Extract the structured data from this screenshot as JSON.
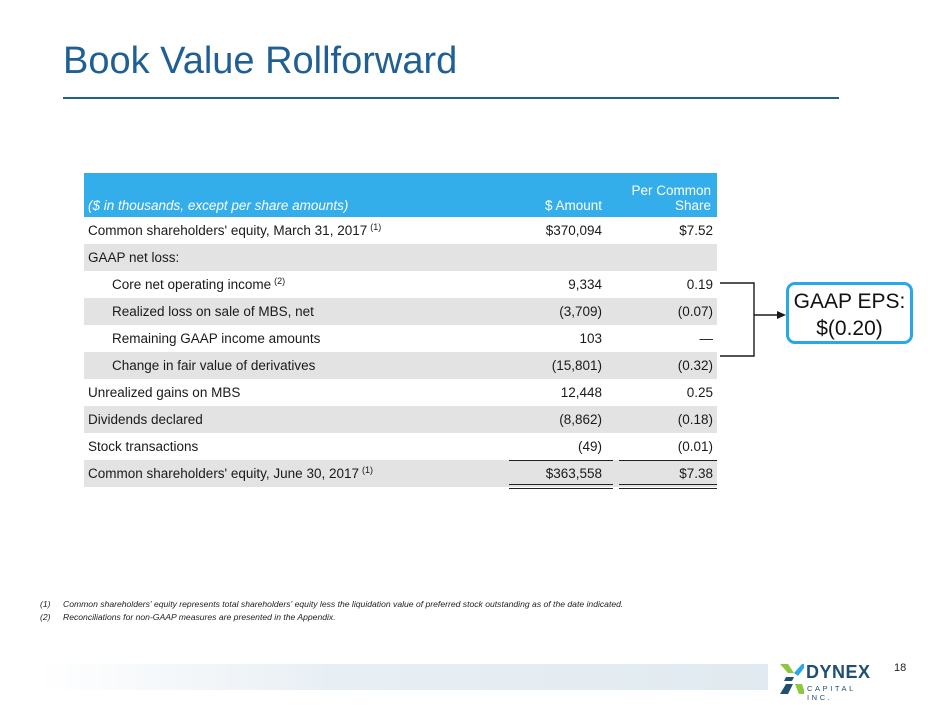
{
  "title": "Book Value Rollforward",
  "table": {
    "header": {
      "label": "($ in thousands, except per share amounts)",
      "amount": "$ Amount",
      "per_share_line1": "Per Common",
      "per_share_line2": "Share"
    },
    "rows": [
      {
        "label": "Common shareholders' equity, March 31, 2017",
        "note": "(1)",
        "amount": "$370,094",
        "per_share": "$7.52"
      },
      {
        "label": "GAAP net loss:",
        "note": "",
        "amount": "",
        "per_share": ""
      },
      {
        "label": "Core net operating income",
        "note": "(2)",
        "amount": "9,334",
        "per_share": "0.19"
      },
      {
        "label": "Realized loss on sale of MBS, net",
        "note": "",
        "amount": "(3,709)",
        "per_share": "(0.07)"
      },
      {
        "label": "Remaining GAAP income amounts",
        "note": "",
        "amount": "103",
        "per_share": "—"
      },
      {
        "label": "Change in fair value of derivatives",
        "note": "",
        "amount": "(15,801)",
        "per_share": "(0.32)"
      },
      {
        "label": "Unrealized gains on MBS",
        "note": "",
        "amount": "12,448",
        "per_share": "0.25"
      },
      {
        "label": "Dividends declared",
        "note": "",
        "amount": "(8,862)",
        "per_share": "(0.18)"
      },
      {
        "label": "Stock transactions",
        "note": "",
        "amount": "(49)",
        "per_share": "(0.01)"
      },
      {
        "label": "Common shareholders' equity, June 30, 2017",
        "note": "(1)",
        "amount": "$363,558",
        "per_share": "$7.38"
      }
    ]
  },
  "eps_box": {
    "line1": "GAAP EPS:",
    "line2": "$(0.20)"
  },
  "footnotes": [
    {
      "mark": "(1)",
      "text": "Common shareholders' equity represents total shareholders' equity less the liquidation value of preferred stock outstanding as of the date indicated."
    },
    {
      "mark": "(2)",
      "text": "Reconciliations for non-GAAP measures are presented in the Appendix."
    }
  ],
  "page_number": "18",
  "logo": {
    "name": "DYNEX",
    "subtitle": "CAPITAL INC."
  },
  "colors": {
    "title": "#1f5f93",
    "header_bg": "#34aeea",
    "row_shade": "#e3e3e3",
    "eps_border": "#2aa7e8",
    "logo": "#1f4f73"
  }
}
